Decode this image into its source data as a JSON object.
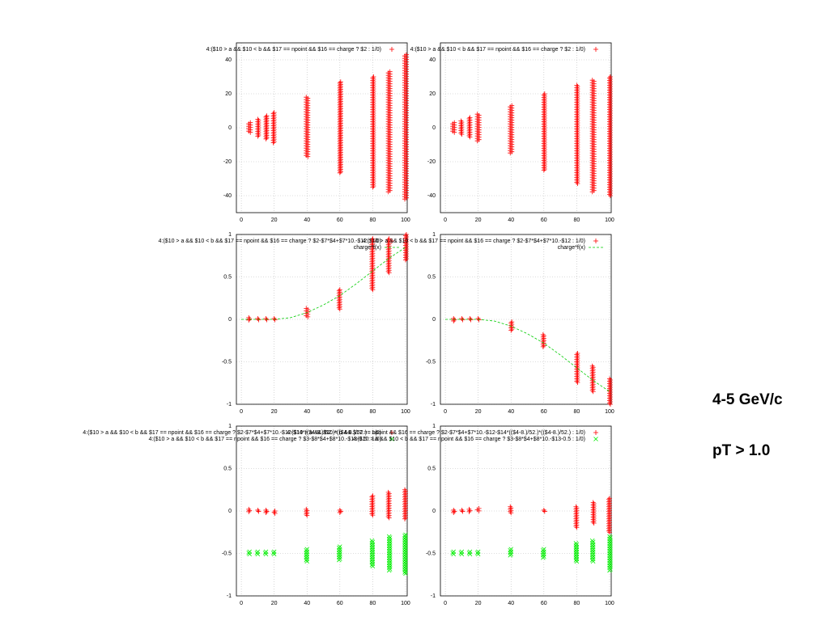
{
  "chart_data": [
    {
      "type": "scatter",
      "xlim": [
        -3,
        101
      ],
      "xticks": [
        0,
        20,
        40,
        60,
        80,
        100
      ],
      "ylim": [
        -50,
        50
      ],
      "yticks": [
        -40,
        -20,
        0,
        20,
        40
      ],
      "grid": true,
      "series": [
        {
          "name": "4:($10 > a && $10 < b && $17 == npoint && $16 == charge ? $2 : 1/0)",
          "color": "#ff0000",
          "marker": "+",
          "x": [
            5,
            10,
            15,
            20,
            40,
            60,
            80,
            90,
            100
          ],
          "low": [
            -3,
            -5,
            -7,
            -9,
            -17,
            -27,
            -35,
            -38,
            -42
          ],
          "high": [
            3,
            5,
            7,
            9,
            18,
            27,
            30,
            33,
            43
          ]
        }
      ]
    },
    {
      "type": "scatter",
      "xlim": [
        -3,
        101
      ],
      "xticks": [
        0,
        20,
        40,
        60,
        80,
        100
      ],
      "ylim": [
        -50,
        50
      ],
      "yticks": [
        -40,
        -20,
        0,
        20,
        40
      ],
      "grid": true,
      "series": [
        {
          "name": "4:($10 > a && $10 < b && $17 == npoint && $16 == charge ? $2 : 1/0)",
          "color": "#ff0000",
          "marker": "+",
          "x": [
            5,
            10,
            15,
            20,
            40,
            60,
            80,
            90,
            100
          ],
          "low": [
            -3,
            -4,
            -6,
            -8,
            -15,
            -25,
            -33,
            -38,
            -40
          ],
          "high": [
            3,
            4,
            6,
            8,
            13,
            20,
            25,
            28,
            30
          ]
        }
      ]
    },
    {
      "type": "scatter",
      "xlim": [
        -3,
        101
      ],
      "xticks": [
        0,
        20,
        40,
        60,
        80,
        100
      ],
      "ylim": [
        -1,
        1
      ],
      "yticks": [
        -1,
        -0.5,
        0,
        0.5,
        1
      ],
      "grid": true,
      "series": [
        {
          "name": "4:($10 > a && $10 < b && $17 == npoint && $16 == charge ? $2-$7*$4+$7*10.-$12 : 1/0)",
          "color": "#ff0000",
          "marker": "+",
          "x": [
            5,
            10,
            15,
            20,
            40,
            60,
            80,
            90,
            100
          ],
          "low": [
            -0.01,
            -0.01,
            -0.01,
            -0.01,
            0.02,
            0.12,
            0.35,
            0.55,
            0.7
          ],
          "high": [
            0.02,
            0.01,
            0.01,
            0.01,
            0.13,
            0.35,
            0.95,
            0.95,
            1
          ]
        },
        {
          "name": "charge*f(x)",
          "color": "#00cc00",
          "marker": "dashed-line",
          "x": [
            0,
            10,
            20,
            30,
            40,
            50,
            60,
            70,
            80,
            90,
            100
          ],
          "values": [
            0,
            0,
            0,
            0.02,
            0.08,
            0.17,
            0.28,
            0.42,
            0.57,
            0.72,
            0.85
          ]
        }
      ]
    },
    {
      "type": "scatter",
      "xlim": [
        -3,
        101
      ],
      "xticks": [
        0,
        20,
        40,
        60,
        80,
        100
      ],
      "ylim": [
        -1,
        1
      ],
      "yticks": [
        -1,
        -0.5,
        0,
        0.5,
        1
      ],
      "grid": true,
      "series": [
        {
          "name": "4:($10 > a && $10 < b && $17 == npoint && $16 == charge ? $2-$7*$4+$7*10.-$12 : 1/0)",
          "color": "#ff0000",
          "marker": "+",
          "x": [
            5,
            10,
            15,
            20,
            40,
            60,
            80,
            90,
            100
          ],
          "low": [
            -0.02,
            -0.01,
            -0.01,
            -0.01,
            -0.13,
            -0.33,
            -0.75,
            -0.85,
            -1
          ],
          "high": [
            0.01,
            0.01,
            0.01,
            0.01,
            -0.03,
            -0.18,
            -0.4,
            -0.55,
            -0.7
          ]
        },
        {
          "name": "charge*f(x)",
          "color": "#00cc00",
          "marker": "dashed-line",
          "x": [
            0,
            10,
            20,
            30,
            40,
            50,
            60,
            70,
            80,
            90,
            100
          ],
          "values": [
            0,
            0,
            0,
            -0.02,
            -0.08,
            -0.17,
            -0.28,
            -0.42,
            -0.57,
            -0.72,
            -0.85
          ]
        }
      ]
    },
    {
      "type": "scatter",
      "xlim": [
        -3,
        101
      ],
      "xticks": [
        0,
        20,
        40,
        60,
        80,
        100
      ],
      "ylim": [
        -1,
        1
      ],
      "yticks": [
        -1,
        -0.5,
        0,
        0.5,
        1
      ],
      "grid": true,
      "series": [
        {
          "name": "4:($10 > a && $10 < b && $17 == npoint && $16 == charge ? $2-$7*$4+$7*10.-$12-$14*(($4-8.)/52.)*(($4-8.)/52.) : 1/0)",
          "color": "#ff0000",
          "marker": "+",
          "x": [
            5,
            10,
            15,
            20,
            40,
            60,
            80,
            90,
            100
          ],
          "low": [
            -0.01,
            -0.01,
            -0.02,
            -0.03,
            -0.06,
            -0.02,
            -0.05,
            -0.08,
            -0.1
          ],
          "high": [
            0.02,
            0.01,
            0.01,
            0,
            0.02,
            0.01,
            0.18,
            0.22,
            0.25
          ]
        },
        {
          "name": "4:($10 > a && $10 < b && $17 == npoint && $16 == charge ? $3-$8*$4+$8*10.-$13-0.5 : 1/0)",
          "color": "#00ee00",
          "marker": "x",
          "x": [
            5,
            10,
            15,
            20,
            40,
            60,
            80,
            90,
            100
          ],
          "low": [
            -0.52,
            -0.52,
            -0.52,
            -0.52,
            -0.6,
            -0.58,
            -0.65,
            -0.7,
            -0.75
          ],
          "high": [
            -0.48,
            -0.48,
            -0.48,
            -0.48,
            -0.45,
            -0.42,
            -0.35,
            -0.3,
            -0.28
          ]
        }
      ]
    },
    {
      "type": "scatter",
      "xlim": [
        -3,
        101
      ],
      "xticks": [
        0,
        20,
        40,
        60,
        80,
        100
      ],
      "ylim": [
        -1,
        1
      ],
      "yticks": [
        -1,
        -0.5,
        0,
        0.5,
        1
      ],
      "grid": true,
      "series": [
        {
          "name": "4:($10 > a && $10 < b && $17 == npoint && $16 == charge ? $2-$7*$4+$7*10.-$12-$14*(($4-8.)/52.)*(($4-8.)/52.) : 1/0)",
          "color": "#ff0000",
          "marker": "+",
          "x": [
            5,
            10,
            15,
            20,
            40,
            60,
            80,
            90,
            100
          ],
          "low": [
            -0.02,
            -0.01,
            -0.01,
            -0.01,
            -0.03,
            -0.01,
            -0.2,
            -0.15,
            -0.25
          ],
          "high": [
            0.01,
            0.01,
            0.02,
            0.03,
            0.05,
            0.01,
            0.05,
            0.1,
            0.15
          ]
        },
        {
          "name": "4:($10 > a && $10 < b && $17 == npoint && $16 == charge ? $3-$8*$4+$8*10.-$13-0.5 : 1/0)",
          "color": "#00ee00",
          "marker": "x",
          "x": [
            5,
            10,
            15,
            20,
            40,
            60,
            80,
            90,
            100
          ],
          "low": [
            -0.52,
            -0.52,
            -0.52,
            -0.52,
            -0.53,
            -0.55,
            -0.6,
            -0.6,
            -0.7
          ],
          "high": [
            -0.48,
            -0.48,
            -0.48,
            -0.48,
            -0.45,
            -0.45,
            -0.38,
            -0.35,
            -0.3
          ]
        }
      ]
    }
  ],
  "side_text": [
    "4-5 GeV/c",
    "pT > 1.0"
  ]
}
